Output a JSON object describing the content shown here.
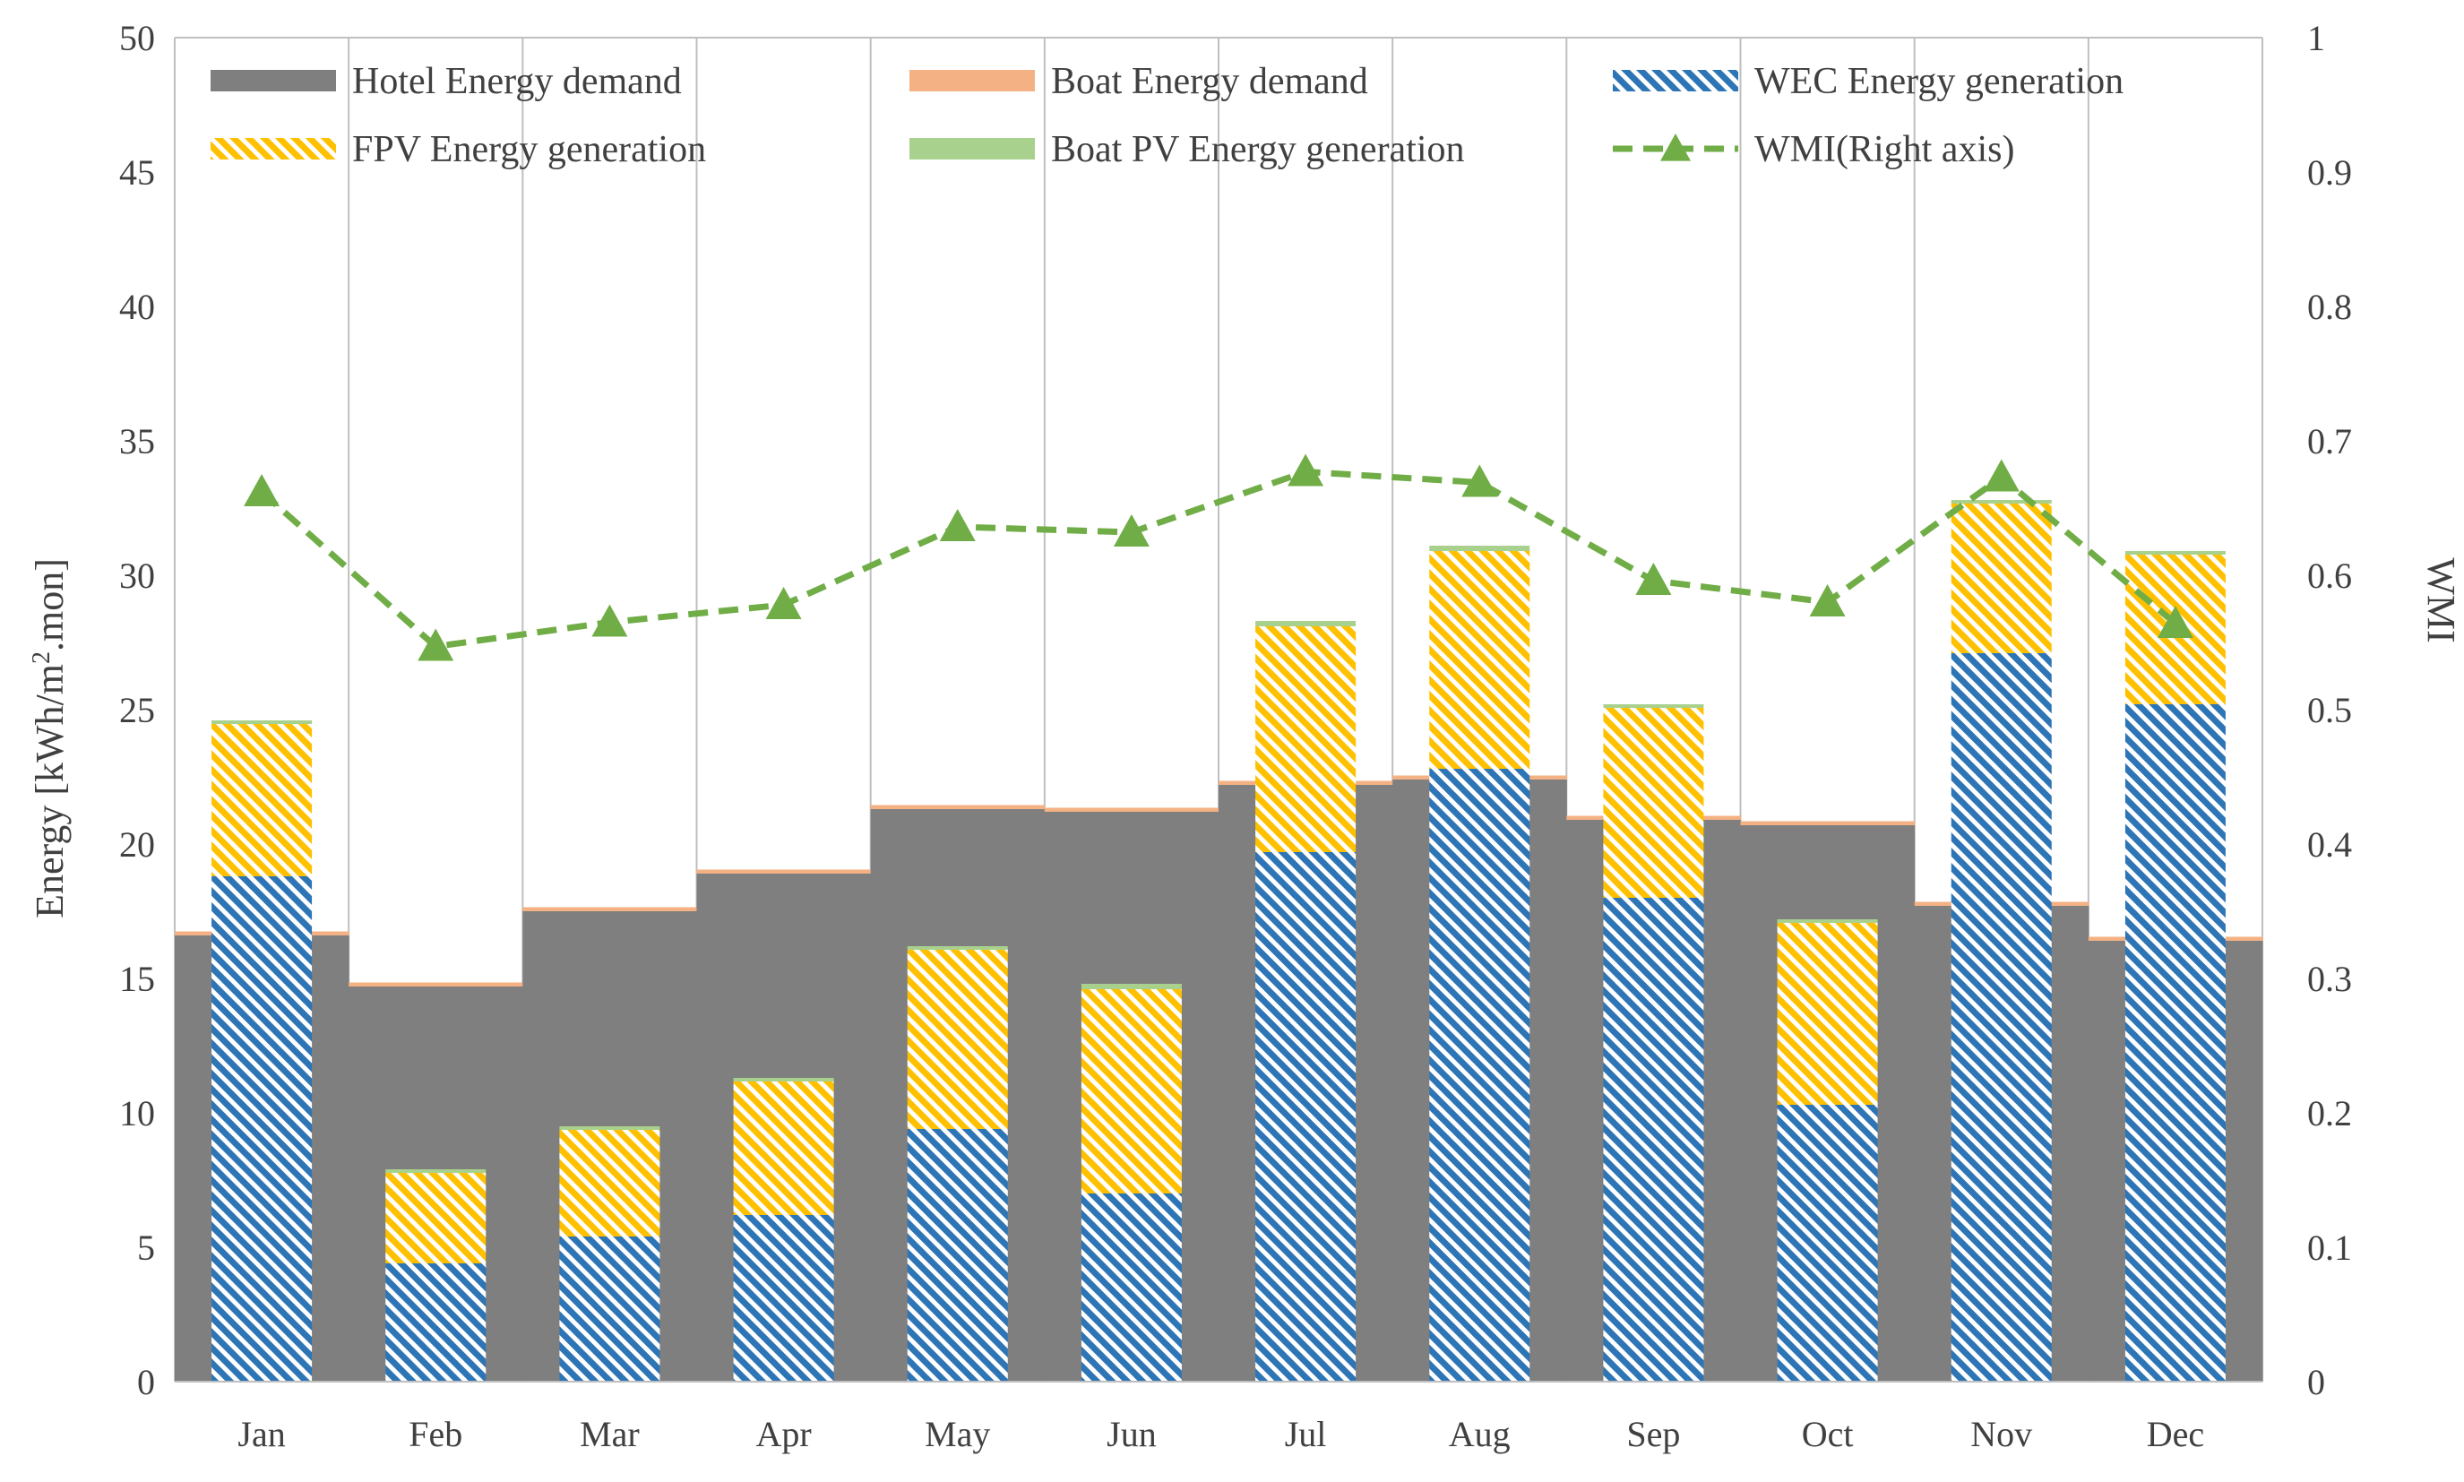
{
  "chart_data": {
    "type": "bar",
    "title": "",
    "categories": [
      "Jan",
      "Feb",
      "Mar",
      "Apr",
      "May",
      "Jun",
      "Jul",
      "Aug",
      "Sep",
      "Oct",
      "Nov",
      "Dec"
    ],
    "ylabel": "Energy [kWh/m²·mon]",
    "ylabel_parts": {
      "main": "Energy [kWh/m",
      "sup": "2",
      "end": ".mon]"
    },
    "y2label": "WMI",
    "ylim": [
      0,
      50
    ],
    "y2lim": [
      0,
      1
    ],
    "yticks": [
      "0",
      "5",
      "10",
      "15",
      "20",
      "25",
      "30",
      "35",
      "40",
      "45",
      "50"
    ],
    "y2ticks": [
      "0",
      "0.1",
      "0.2",
      "0.3",
      "0.4",
      "0.5",
      "0.6",
      "0.7",
      "0.8",
      "0.9",
      "1"
    ],
    "grid": "vertical",
    "legend_position": "top",
    "colors": {
      "hotel": "#7f7f7f",
      "boat_demand": "#f4b183",
      "wec": "#2e75b6",
      "fpv": "#ffc000",
      "boat_pv": "#a9d18e",
      "wmi": "#70ad47",
      "grid": "#bfbfbf",
      "axis_text": "#404040"
    },
    "series": [
      {
        "name": "Hotel Energy demand",
        "kind": "area",
        "values": [
          16.6,
          14.7,
          17.5,
          18.9,
          21.3,
          21.2,
          22.2,
          22.4,
          20.9,
          20.7,
          17.7,
          16.4
        ]
      },
      {
        "name": "Boat Energy demand",
        "kind": "area",
        "values": [
          0.15,
          0.15,
          0.15,
          0.15,
          0.15,
          0.15,
          0.15,
          0.15,
          0.15,
          0.15,
          0.15,
          0.15
        ]
      },
      {
        "name": "WEC Energy generation",
        "kind": "bar",
        "values": [
          18.8,
          4.4,
          5.4,
          6.2,
          9.4,
          7.0,
          19.7,
          22.8,
          18.0,
          10.3,
          27.1,
          25.2
        ]
      },
      {
        "name": "FPV Energy generation",
        "kind": "bar",
        "values": [
          5.7,
          3.4,
          4.0,
          5.0,
          6.7,
          7.6,
          8.4,
          8.1,
          7.1,
          6.8,
          5.6,
          5.6
        ]
      },
      {
        "name": "Boat PV Energy generation",
        "kind": "bar",
        "values": [
          0.1,
          0.1,
          0.1,
          0.1,
          0.1,
          0.2,
          0.2,
          0.2,
          0.1,
          0.1,
          0.1,
          0.1
        ]
      },
      {
        "name": "WMI(Right axis)",
        "kind": "line",
        "axis": "right",
        "values": [
          0.662,
          0.547,
          0.565,
          0.578,
          0.636,
          0.632,
          0.677,
          0.669,
          0.596,
          0.58,
          0.673,
          0.564
        ]
      }
    ]
  }
}
